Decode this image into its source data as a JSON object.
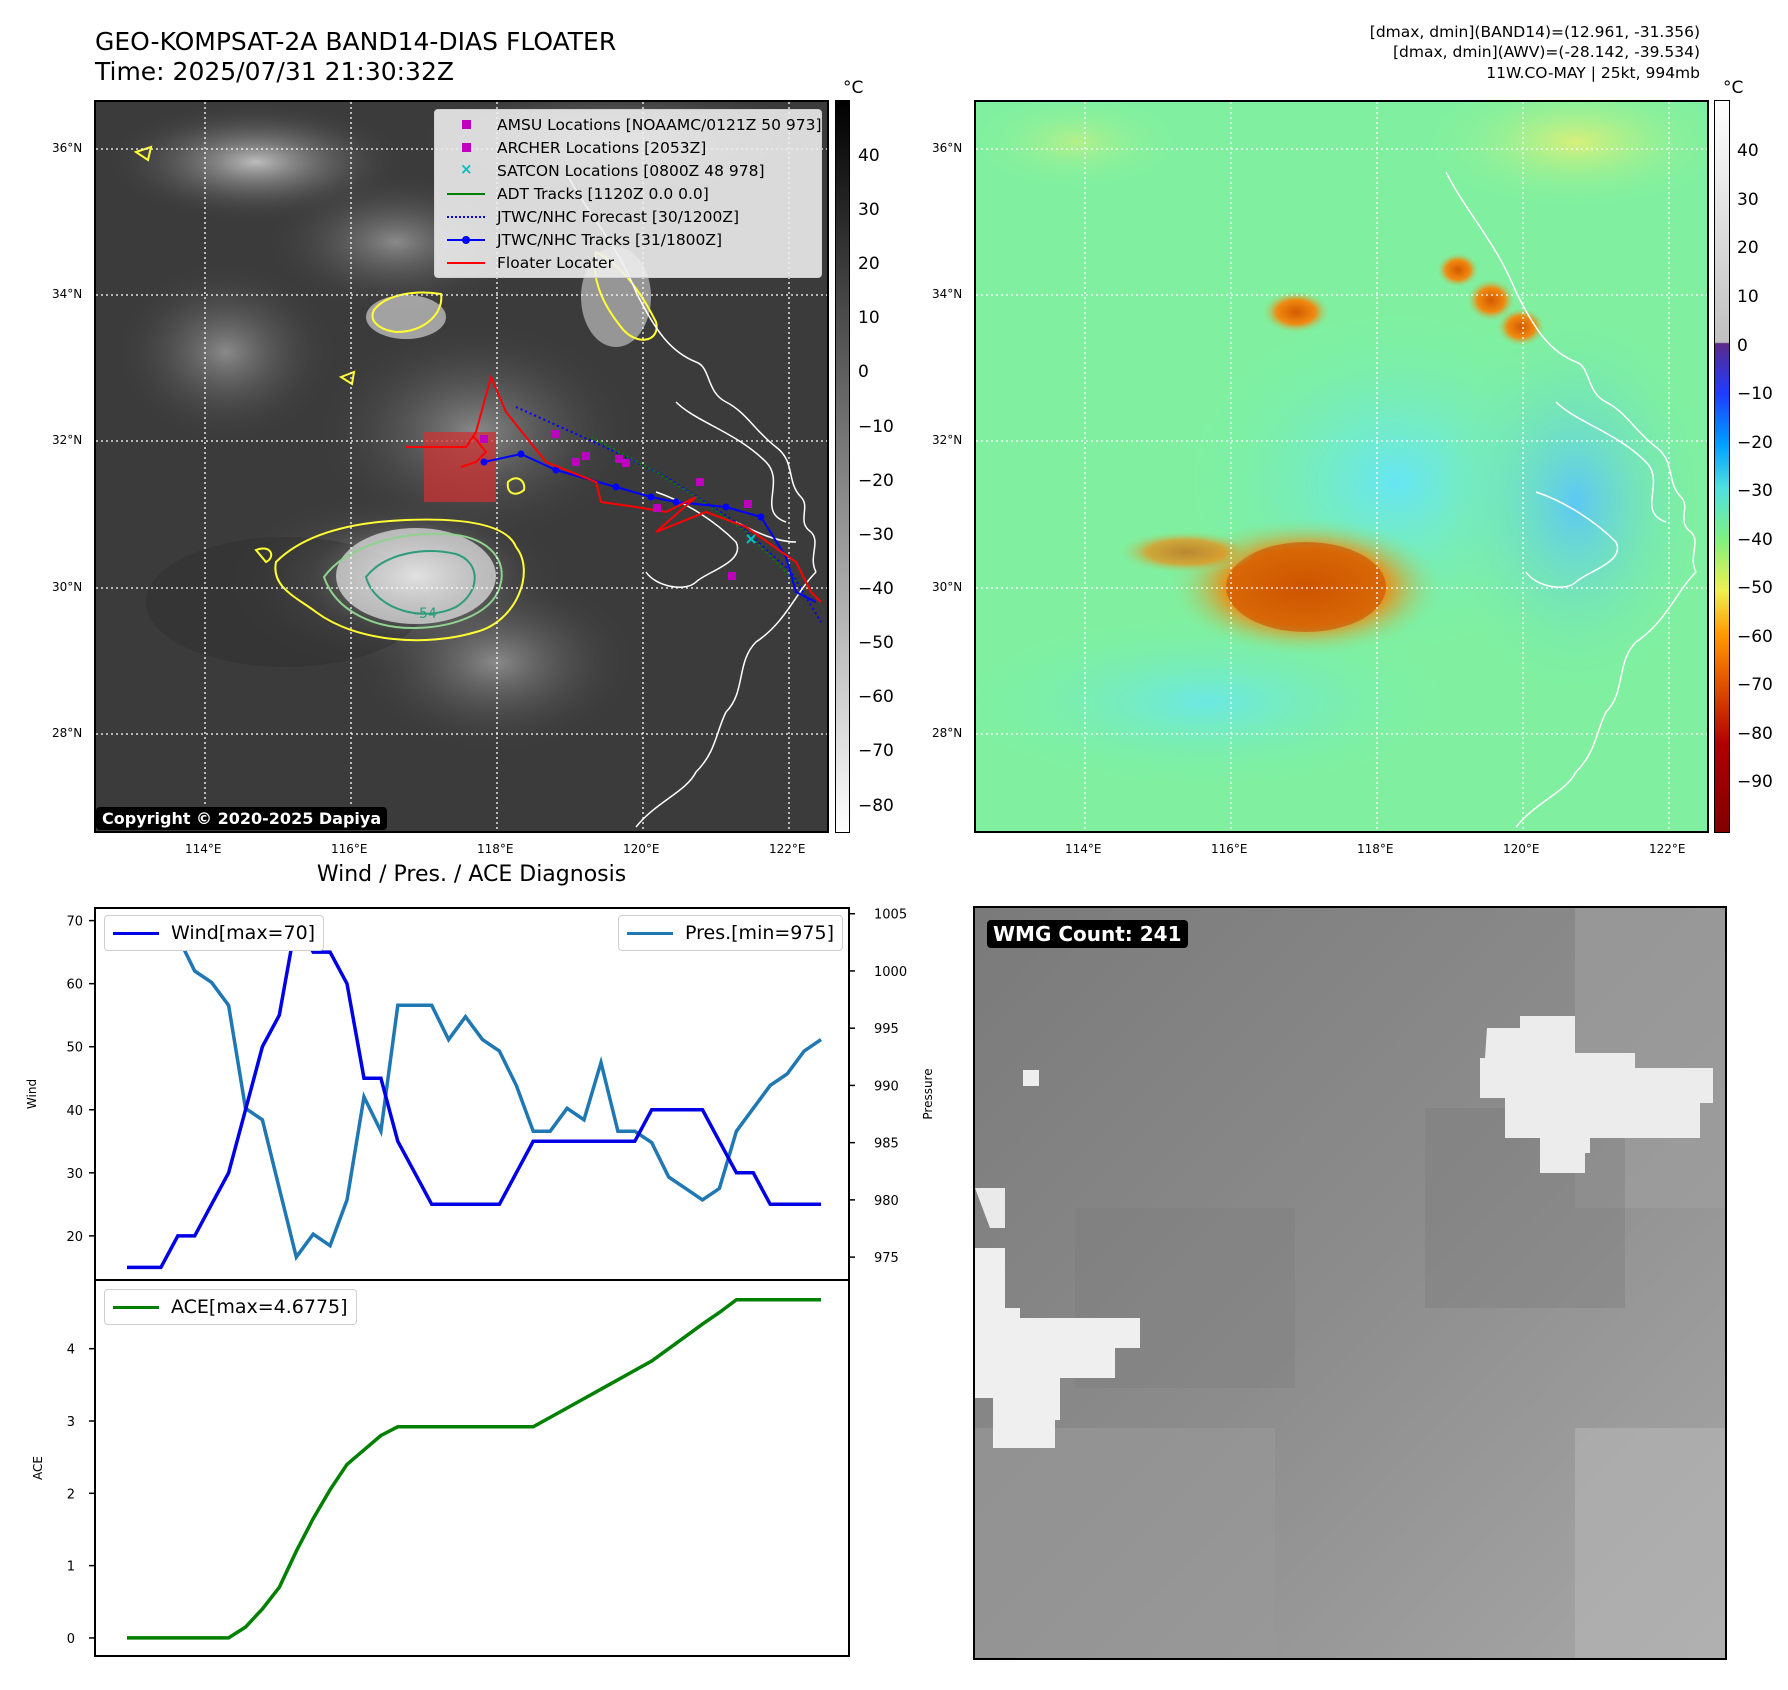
{
  "header": {
    "title_line1": "GEO-KOMPSAT-2A BAND14-DIAS FLOATER",
    "title_line2": "Time: 2025/07/31 21:30:32Z",
    "right_line1": "[dmax, dmin](BAND14)=(12.961, -31.356)",
    "right_line2": "[dmax, dmin](AWV)=(-28.142, -39.534)",
    "right_line3": "11W.CO-MAY | 25kt, 994mb"
  },
  "map_ir": {
    "lat_labels": [
      "36°N",
      "34°N",
      "32°N",
      "30°N",
      "28°N"
    ],
    "lon_labels": [
      "114°E",
      "116°E",
      "118°E",
      "120°E",
      "122°E"
    ],
    "contour_label": "-54",
    "copyright": "Copyright © 2020-2025 Dapiya",
    "legend": [
      {
        "label": "AMSU Locations [NOAAMC/0121Z 50 973]",
        "kind": "square",
        "color": "#bf00bf"
      },
      {
        "label": "ARCHER Locations [2053Z]",
        "kind": "square",
        "color": "#bf00bf"
      },
      {
        "label": "SATCON Locations [0800Z 48 978]",
        "kind": "x",
        "color": "#00bfbf"
      },
      {
        "label": "ADT Tracks [1120Z 0.0 0.0]",
        "kind": "line",
        "color": "#008000"
      },
      {
        "label": "JTWC/NHC Forecast [30/1200Z]",
        "kind": "dotted",
        "color": "#0000ff"
      },
      {
        "label": "JTWC/NHC Tracks [31/1800Z]",
        "kind": "linedot",
        "color": "#0000ff"
      },
      {
        "label": "Floater Locater",
        "kind": "line",
        "color": "#ff0000"
      }
    ],
    "colorbar": {
      "unit": "°C",
      "ticks": [
        "40",
        "30",
        "20",
        "10",
        "0",
        "−10",
        "−20",
        "−30",
        "−40",
        "−50",
        "−60",
        "−70",
        "−80"
      ]
    }
  },
  "map_awv": {
    "lat_labels": [
      "36°N",
      "34°N",
      "32°N",
      "30°N",
      "28°N"
    ],
    "lon_labels": [
      "114°E",
      "116°E",
      "118°E",
      "120°E",
      "122°E"
    ],
    "colorbar": {
      "unit": "°C",
      "ticks": [
        "40",
        "30",
        "20",
        "10",
        "0",
        "−10",
        "−20",
        "−30",
        "−40",
        "−50",
        "−60",
        "−70",
        "−80",
        "−90"
      ]
    }
  },
  "wmg": {
    "count_label": "WMG Count: 241"
  },
  "chart_data": [
    {
      "type": "line",
      "title": "Wind / Pres. / ACE Diagnosis",
      "ylabel": "Wind",
      "ylabel_right": "Pressure",
      "ylim": [
        13,
        72
      ],
      "ylim_right": [
        973,
        1005.5
      ],
      "yticks": [
        20,
        30,
        40,
        50,
        60,
        70
      ],
      "yticks_right": [
        975,
        980,
        985,
        990,
        995,
        1000,
        1005
      ],
      "x": [
        0,
        1,
        2,
        3,
        4,
        5,
        6,
        7,
        8,
        9,
        10,
        11,
        12,
        13,
        14,
        15,
        16,
        17,
        18,
        19,
        20,
        21,
        22,
        23,
        24,
        25,
        26,
        27,
        28,
        29,
        30,
        31,
        32,
        33,
        34,
        35,
        36,
        37,
        38,
        39,
        40,
        41
      ],
      "series": [
        {
          "name": "Wind[max=70]",
          "axis": "left",
          "color": "#0000e6",
          "values": [
            15,
            15,
            15,
            20,
            20,
            25,
            30,
            40,
            50,
            55,
            70,
            65,
            65,
            60,
            45,
            45,
            35,
            30,
            25,
            25,
            25,
            25,
            25,
            30,
            35,
            35,
            35,
            35,
            35,
            35,
            35,
            40,
            40,
            40,
            40,
            35,
            30,
            30,
            25,
            25,
            25,
            25
          ]
        },
        {
          "name": "Pres.[min=975]",
          "axis": "right",
          "color": "#1f77b4",
          "values": [
            1004,
            1004,
            1004,
            1003,
            1000,
            999,
            997,
            988,
            987,
            981,
            975,
            977,
            976,
            980,
            989,
            986,
            997,
            997,
            997,
            994,
            996,
            994,
            993,
            990,
            986,
            986,
            988,
            987,
            992,
            986,
            986,
            985,
            982,
            981,
            980,
            981,
            986,
            988,
            990,
            991,
            993,
            994
          ]
        }
      ]
    },
    {
      "type": "line",
      "ylabel": "ACE",
      "ylim": [
        -0.25,
        4.95
      ],
      "yticks": [
        0,
        1,
        2,
        3,
        4
      ],
      "x": [
        0,
        1,
        2,
        3,
        4,
        5,
        6,
        7,
        8,
        9,
        10,
        11,
        12,
        13,
        14,
        15,
        16,
        17,
        18,
        19,
        20,
        21,
        22,
        23,
        24,
        25,
        26,
        27,
        28,
        29,
        30,
        31,
        32,
        33,
        34,
        35,
        36,
        37,
        38,
        39,
        40,
        41
      ],
      "series": [
        {
          "name": "ACE[max=4.6775]",
          "color": "#008000",
          "values": [
            0,
            0,
            0,
            0,
            0,
            0,
            0,
            0.15,
            0.4,
            0.7,
            1.2,
            1.65,
            2.05,
            2.4,
            2.6,
            2.8,
            2.92,
            2.92,
            2.92,
            2.92,
            2.92,
            2.92,
            2.92,
            2.92,
            2.92,
            3.05,
            3.18,
            3.31,
            3.44,
            3.57,
            3.7,
            3.83,
            4,
            4.17,
            4.34,
            4.5,
            4.6775,
            4.6775,
            4.6775,
            4.6775,
            4.6775,
            4.6775
          ]
        }
      ]
    }
  ]
}
